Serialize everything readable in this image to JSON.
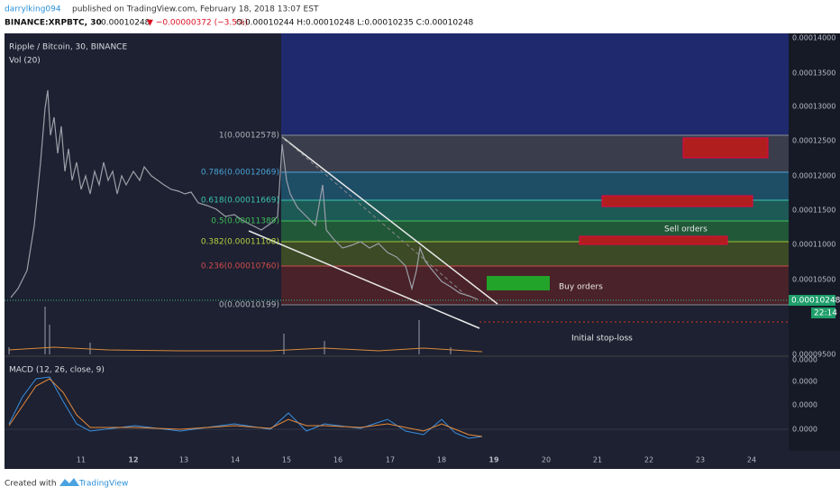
{
  "header": {
    "author": "darrylking094",
    "published": "published on TradingView.com, February 18, 2018 13:07 EST",
    "symbol": "BINANCE:XRPBTC, 30",
    "last": "0.00010248",
    "change": "▼ −0.00000372 (−3.5%)",
    "ohlc": "O:0.00010244 H:0.00010248 L:0.00010235 C:0.00010248"
  },
  "chart": {
    "title": "Ripple / Bitcoin, 30, BINANCE",
    "volume": "Vol (20)",
    "macd": "MACD (12, 26, close, 9)",
    "price_axis": [
      "0.00014000",
      "0.00013500",
      "0.00013000",
      "0.00012500",
      "0.00012000",
      "0.00011500",
      "0.00011000",
      "0.00010500",
      "0.00009500"
    ],
    "current_price": "0.00010248",
    "countdown": "22:14",
    "macd_axis": [
      "0.0000",
      "0.0000",
      "0.0000",
      "0.0000"
    ],
    "fib_levels": [
      {
        "label": "1(0.00012578)"
      },
      {
        "label": "0.786(0.00012069)"
      },
      {
        "label": "0.618(0.00011669)"
      },
      {
        "label": "0.5(0.00011389)"
      },
      {
        "label": "0.382(0.00011108)"
      },
      {
        "label": "0.236(0.00010760)"
      },
      {
        "label": "0(0.00010199)"
      }
    ],
    "annotations": {
      "sell": "Sell orders",
      "buy": "Buy orders",
      "stop": "Initial stop-loss"
    },
    "dates": [
      "11",
      "12",
      "13",
      "14",
      "15",
      "16",
      "17",
      "18",
      "19",
      "20",
      "21",
      "22",
      "23",
      "24"
    ]
  },
  "footer": {
    "created": "Created with",
    "brand": "TradingView"
  }
}
